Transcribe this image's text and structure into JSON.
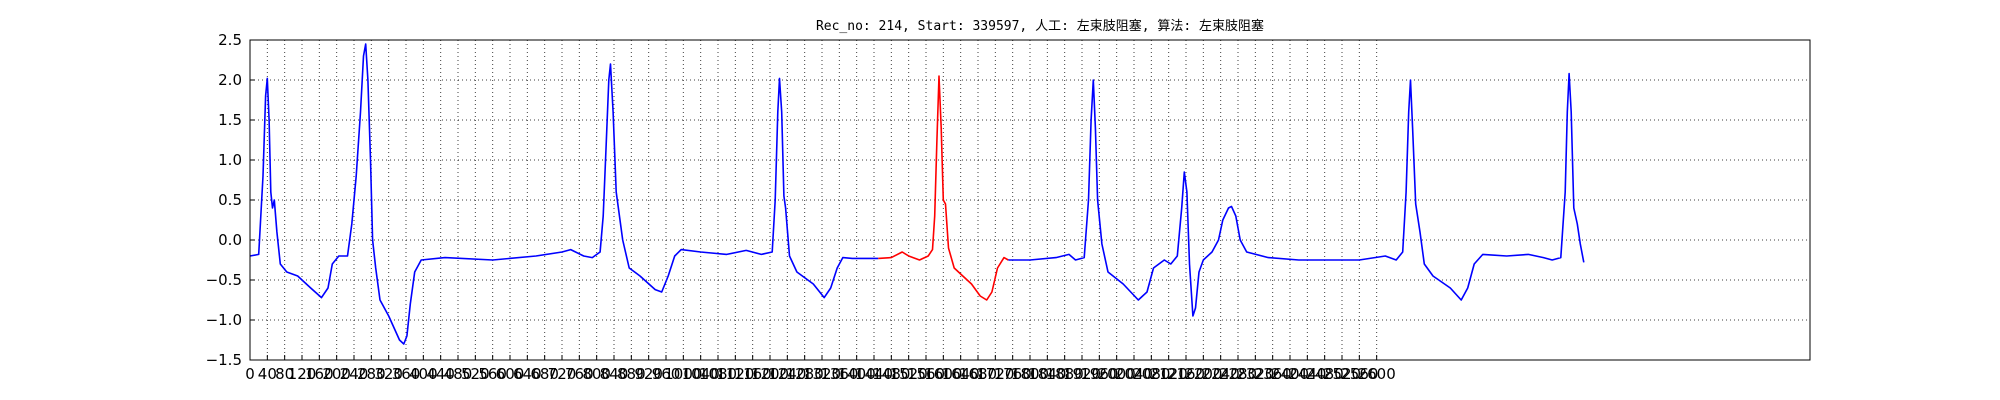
{
  "chart_data": {
    "type": "line",
    "title": "Rec_no: 214, Start: 339597, 人工: 左束肢阻塞, 算法: 左束肢阻塞",
    "xlabel": "",
    "ylabel": "",
    "xlim": [
      0,
      3600
    ],
    "ylim": [
      -1.5,
      2.5
    ],
    "grid": true,
    "xticks": [
      0,
      40,
      80,
      120,
      160,
      200,
      240,
      280,
      320,
      360,
      400,
      440,
      480,
      520,
      560,
      600,
      640,
      680,
      720,
      760,
      800,
      840,
      880,
      920,
      960,
      1000,
      1040,
      1080,
      1120,
      1160,
      1200,
      1240,
      1280,
      1320,
      1360,
      1400,
      1440,
      1480,
      1520,
      1560,
      1600,
      1640,
      1680,
      1720,
      1760,
      1800,
      1840,
      1880,
      1920,
      1960,
      2000,
      2040,
      2080,
      2120,
      2160,
      2200,
      2240,
      2280,
      2320,
      2360,
      2400,
      2440,
      2480,
      2520,
      2560,
      2600
    ],
    "xtick_labels": [
      "0",
      "40",
      "80",
      "120",
      "160",
      "200",
      "240",
      "280",
      "320",
      "360",
      "400",
      "440",
      "480",
      "520",
      "560",
      "600",
      "640",
      "680",
      "720",
      "760",
      "800",
      "840",
      "880",
      "920",
      "960",
      "1000",
      "1040",
      "1080",
      "1120",
      "1160",
      "1200",
      "1240",
      "1280",
      "1320",
      "1360",
      "1400",
      "1440",
      "1480",
      "1520",
      "1560",
      "1600",
      "1640",
      "1680",
      "1720",
      "1760",
      "1800",
      "1840",
      "1880",
      "1920",
      "1960",
      "2000",
      "2040",
      "2080",
      "2120",
      "2160",
      "2200",
      "2240",
      "2280",
      "2320",
      "2360",
      "2400",
      "2440",
      "2480",
      "2520",
      "2560",
      "2600"
    ],
    "yticks": [
      -1.5,
      -1.0,
      -0.5,
      0.0,
      0.5,
      1.0,
      1.5,
      2.0,
      2.5
    ],
    "ytick_labels": [
      "−1.5",
      "−1.0",
      "−0.5",
      "0.0",
      "0.5",
      "1.0",
      "1.5",
      "2.0",
      "2.5"
    ],
    "series": [
      {
        "color": "#0000ff",
        "points": [
          [
            0,
            -0.2
          ],
          [
            20,
            -0.18
          ],
          [
            30,
            0.8
          ],
          [
            36,
            1.8
          ],
          [
            40,
            2.02
          ],
          [
            44,
            1.5
          ],
          [
            48,
            0.6
          ],
          [
            52,
            0.4
          ],
          [
            56,
            0.5
          ],
          [
            62,
            0.1
          ],
          [
            70,
            -0.3
          ],
          [
            85,
            -0.4
          ],
          [
            110,
            -0.45
          ],
          [
            140,
            -0.6
          ],
          [
            165,
            -0.72
          ],
          [
            180,
            -0.6
          ],
          [
            190,
            -0.3
          ],
          [
            205,
            -0.2
          ],
          [
            225,
            -0.2
          ],
          [
            235,
            0.2
          ],
          [
            245,
            0.8
          ],
          [
            255,
            1.6
          ],
          [
            262,
            2.3
          ],
          [
            267,
            2.45
          ],
          [
            272,
            2.0
          ],
          [
            278,
            1.0
          ],
          [
            283,
            0.0
          ],
          [
            290,
            -0.35
          ],
          [
            300,
            -0.75
          ],
          [
            320,
            -0.95
          ],
          [
            345,
            -1.25
          ],
          [
            355,
            -1.3
          ],
          [
            362,
            -1.2
          ],
          [
            370,
            -0.8
          ],
          [
            380,
            -0.4
          ],
          [
            395,
            -0.25
          ],
          [
            450,
            -0.22
          ],
          [
            560,
            -0.25
          ],
          [
            660,
            -0.2
          ],
          [
            720,
            -0.15
          ],
          [
            740,
            -0.12
          ],
          [
            770,
            -0.2
          ],
          [
            790,
            -0.22
          ],
          [
            808,
            -0.15
          ],
          [
            815,
            0.3
          ],
          [
            822,
            1.2
          ],
          [
            828,
            2.0
          ],
          [
            832,
            2.2
          ],
          [
            838,
            1.6
          ],
          [
            845,
            0.6
          ],
          [
            860,
            0.0
          ],
          [
            875,
            -0.35
          ],
          [
            900,
            -0.45
          ],
          [
            935,
            -0.62
          ],
          [
            950,
            -0.65
          ],
          [
            965,
            -0.45
          ],
          [
            980,
            -0.2
          ],
          [
            995,
            -0.12
          ],
          [
            1040,
            -0.15
          ],
          [
            1100,
            -0.18
          ],
          [
            1145,
            -0.13
          ],
          [
            1180,
            -0.18
          ],
          [
            1205,
            -0.15
          ],
          [
            1212,
            0.5
          ],
          [
            1218,
            1.6
          ],
          [
            1222,
            2.02
          ],
          [
            1227,
            1.6
          ],
          [
            1232,
            0.55
          ],
          [
            1236,
            0.4
          ],
          [
            1245,
            -0.2
          ],
          [
            1262,
            -0.4
          ],
          [
            1300,
            -0.55
          ],
          [
            1325,
            -0.72
          ],
          [
            1340,
            -0.6
          ],
          [
            1355,
            -0.35
          ],
          [
            1368,
            -0.22
          ],
          [
            1390,
            -0.23
          ],
          [
            1450,
            -0.23
          ]
        ]
      },
      {
        "color": "#ff0000",
        "points": [
          [
            1450,
            -0.23
          ],
          [
            1480,
            -0.22
          ],
          [
            1505,
            -0.15
          ],
          [
            1520,
            -0.2
          ],
          [
            1545,
            -0.25
          ],
          [
            1565,
            -0.2
          ],
          [
            1575,
            -0.12
          ],
          [
            1580,
            0.3
          ],
          [
            1585,
            1.2
          ],
          [
            1590,
            2.05
          ],
          [
            1595,
            1.4
          ],
          [
            1600,
            0.5
          ],
          [
            1605,
            0.45
          ],
          [
            1612,
            -0.1
          ],
          [
            1625,
            -0.35
          ],
          [
            1645,
            -0.45
          ],
          [
            1665,
            -0.55
          ],
          [
            1685,
            -0.7
          ],
          [
            1700,
            -0.75
          ],
          [
            1712,
            -0.65
          ],
          [
            1725,
            -0.35
          ],
          [
            1740,
            -0.22
          ],
          [
            1750,
            -0.25
          ]
        ]
      },
      {
        "color": "#0000ff",
        "points": [
          [
            1750,
            -0.25
          ],
          [
            1800,
            -0.25
          ],
          [
            1860,
            -0.22
          ],
          [
            1890,
            -0.18
          ],
          [
            1905,
            -0.25
          ],
          [
            1925,
            -0.22
          ],
          [
            1935,
            0.5
          ],
          [
            1941,
            1.5
          ],
          [
            1946,
            2.0
          ],
          [
            1951,
            1.4
          ],
          [
            1956,
            0.5
          ],
          [
            1966,
            -0.05
          ],
          [
            1980,
            -0.4
          ],
          [
            2015,
            -0.55
          ],
          [
            2050,
            -0.75
          ],
          [
            2070,
            -0.65
          ],
          [
            2085,
            -0.35
          ],
          [
            2110,
            -0.25
          ],
          [
            2125,
            -0.3
          ],
          [
            2140,
            -0.2
          ],
          [
            2150,
            0.4
          ],
          [
            2156,
            0.85
          ],
          [
            2162,
            0.6
          ],
          [
            2168,
            -0.3
          ],
          [
            2176,
            -0.95
          ],
          [
            2182,
            -0.85
          ],
          [
            2190,
            -0.4
          ],
          [
            2200,
            -0.25
          ],
          [
            2220,
            -0.15
          ],
          [
            2235,
            0.0
          ],
          [
            2245,
            0.25
          ],
          [
            2258,
            0.4
          ],
          [
            2265,
            0.42
          ],
          [
            2275,
            0.3
          ],
          [
            2285,
            0.0
          ],
          [
            2300,
            -0.15
          ],
          [
            2350,
            -0.22
          ],
          [
            2420,
            -0.25
          ],
          [
            2500,
            -0.25
          ],
          [
            2560,
            -0.25
          ],
          [
            2620,
            -0.2
          ],
          [
            2645,
            -0.25
          ],
          [
            2660,
            -0.15
          ],
          [
            2668,
            0.6
          ],
          [
            2674,
            1.6
          ],
          [
            2678,
            2.0
          ],
          [
            2683,
            1.4
          ],
          [
            2690,
            0.45
          ],
          [
            2700,
            0.1
          ],
          [
            2710,
            -0.3
          ],
          [
            2730,
            -0.45
          ],
          [
            2770,
            -0.6
          ],
          [
            2795,
            -0.75
          ],
          [
            2810,
            -0.6
          ],
          [
            2825,
            -0.3
          ],
          [
            2845,
            -0.18
          ],
          [
            2900,
            -0.2
          ],
          [
            2950,
            -0.18
          ],
          [
            2985,
            -0.22
          ],
          [
            3005,
            -0.25
          ],
          [
            3025,
            -0.22
          ],
          [
            3035,
            0.6
          ],
          [
            3040,
            1.6
          ],
          [
            3044,
            2.08
          ],
          [
            3049,
            1.6
          ],
          [
            3055,
            0.4
          ],
          [
            3063,
            0.2
          ],
          [
            3070,
            -0.05
          ],
          [
            3078,
            -0.28
          ]
        ]
      }
    ]
  }
}
